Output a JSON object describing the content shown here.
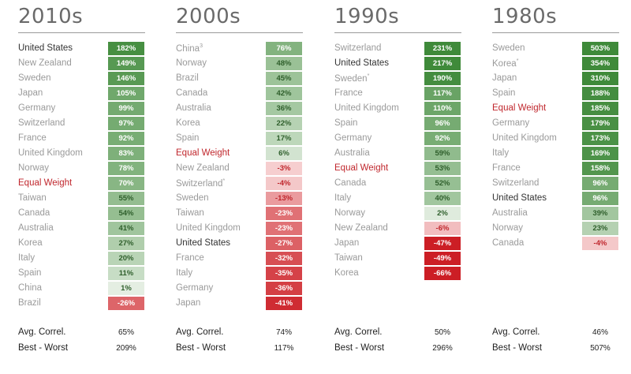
{
  "chart_data": [
    {
      "type": "table",
      "title": "2010s",
      "rows": [
        {
          "label": "United States",
          "value": 182,
          "display": "182%",
          "style": "dark"
        },
        {
          "label": "New Zealand",
          "value": 149,
          "display": "149%"
        },
        {
          "label": "Sweden",
          "value": 146,
          "display": "146%"
        },
        {
          "label": "Japan",
          "value": 105,
          "display": "105%"
        },
        {
          "label": "Germany",
          "value": 99,
          "display": "99%"
        },
        {
          "label": "Switzerland",
          "value": 97,
          "display": "97%"
        },
        {
          "label": "France",
          "value": 92,
          "display": "92%"
        },
        {
          "label": "United Kingdom",
          "value": 83,
          "display": "83%"
        },
        {
          "label": "Norway",
          "value": 78,
          "display": "78%"
        },
        {
          "label": "Equal Weight",
          "value": 70,
          "display": "70%",
          "style": "red"
        },
        {
          "label": "Taiwan",
          "value": 55,
          "display": "55%"
        },
        {
          "label": "Canada",
          "value": 54,
          "display": "54%"
        },
        {
          "label": "Australia",
          "value": 41,
          "display": "41%"
        },
        {
          "label": "Korea",
          "value": 27,
          "display": "27%"
        },
        {
          "label": "Italy",
          "value": 20,
          "display": "20%"
        },
        {
          "label": "Spain",
          "value": 11,
          "display": "11%"
        },
        {
          "label": "China",
          "value": 1,
          "display": "1%"
        },
        {
          "label": "Brazil",
          "value": -26,
          "display": "-26%"
        }
      ],
      "avg_correl_label": "Avg. Correl.",
      "avg_correl": "65%",
      "best_worst_label": "Best - Worst",
      "best_worst": "209%"
    },
    {
      "type": "table",
      "title": "2000s",
      "rows": [
        {
          "label": "China",
          "sup": "3",
          "value": 76,
          "display": "76%"
        },
        {
          "label": "Norway",
          "value": 48,
          "display": "48%"
        },
        {
          "label": "Brazil",
          "value": 45,
          "display": "45%"
        },
        {
          "label": "Canada",
          "value": 42,
          "display": "42%"
        },
        {
          "label": "Australia",
          "value": 36,
          "display": "36%"
        },
        {
          "label": "Korea",
          "value": 22,
          "display": "22%"
        },
        {
          "label": "Spain",
          "value": 17,
          "display": "17%"
        },
        {
          "label": "Equal Weight",
          "value": 6,
          "display": "6%",
          "style": "red"
        },
        {
          "label": "New Zealand",
          "value": -3,
          "display": "-3%"
        },
        {
          "label": "Switzerland",
          "sup": "*",
          "value": -4,
          "display": "-4%"
        },
        {
          "label": "Sweden",
          "value": -13,
          "display": "-13%"
        },
        {
          "label": "Taiwan",
          "value": -23,
          "display": "-23%"
        },
        {
          "label": "United Kingdom",
          "value": -23,
          "display": "-23%"
        },
        {
          "label": "United States",
          "value": -27,
          "display": "-27%",
          "style": "dark"
        },
        {
          "label": "France",
          "value": -32,
          "display": "-32%"
        },
        {
          "label": "Italy",
          "value": -35,
          "display": "-35%"
        },
        {
          "label": "Germany",
          "value": -36,
          "display": "-36%"
        },
        {
          "label": "Japan",
          "value": -41,
          "display": "-41%"
        }
      ],
      "avg_correl_label": "Avg. Correl.",
      "avg_correl": "74%",
      "best_worst_label": "Best - Worst",
      "best_worst": "117%"
    },
    {
      "type": "table",
      "title": "1990s",
      "rows": [
        {
          "label": "Switzerland",
          "value": 231,
          "display": "231%"
        },
        {
          "label": "United States",
          "value": 217,
          "display": "217%",
          "style": "dark"
        },
        {
          "label": "Sweden",
          "sup": "*",
          "value": 190,
          "display": "190%"
        },
        {
          "label": "France",
          "value": 117,
          "display": "117%"
        },
        {
          "label": "United Kingdom",
          "value": 110,
          "display": "110%"
        },
        {
          "label": "Spain",
          "value": 96,
          "display": "96%"
        },
        {
          "label": "Germany",
          "value": 92,
          "display": "92%"
        },
        {
          "label": "Australia",
          "value": 59,
          "display": "59%"
        },
        {
          "label": "Equal Weight",
          "value": 53,
          "display": "53%",
          "style": "red"
        },
        {
          "label": "Canada",
          "value": 52,
          "display": "52%"
        },
        {
          "label": "Italy",
          "value": 40,
          "display": "40%"
        },
        {
          "label": "Norway",
          "value": 2,
          "display": "2%"
        },
        {
          "label": "New Zealand",
          "value": -6,
          "display": "-6%"
        },
        {
          "label": "Japan",
          "value": -47,
          "display": "-47%"
        },
        {
          "label": "Taiwan",
          "value": -49,
          "display": "-49%"
        },
        {
          "label": "Korea",
          "value": -66,
          "display": "-66%"
        }
      ],
      "avg_correl_label": "Avg. Correl.",
      "avg_correl": "50%",
      "best_worst_label": "Best - Worst",
      "best_worst": "296%"
    },
    {
      "type": "table",
      "title": "1980s",
      "rows": [
        {
          "label": "Sweden",
          "value": 503,
          "display": "503%"
        },
        {
          "label": "Korea",
          "sup": "*",
          "value": 354,
          "display": "354%"
        },
        {
          "label": "Japan",
          "value": 310,
          "display": "310%"
        },
        {
          "label": "Spain",
          "value": 188,
          "display": "188%"
        },
        {
          "label": "Equal Weight",
          "value": 185,
          "display": "185%",
          "style": "red"
        },
        {
          "label": "Germany",
          "value": 179,
          "display": "179%"
        },
        {
          "label": "United Kingdom",
          "value": 173,
          "display": "173%"
        },
        {
          "label": "Italy",
          "value": 169,
          "display": "169%"
        },
        {
          "label": "France",
          "value": 158,
          "display": "158%"
        },
        {
          "label": "Switzerland",
          "value": 96,
          "display": "96%"
        },
        {
          "label": "United States",
          "value": 96,
          "display": "96%",
          "style": "dark"
        },
        {
          "label": "Australia",
          "value": 39,
          "display": "39%"
        },
        {
          "label": "Norway",
          "value": 23,
          "display": "23%"
        },
        {
          "label": "Canada",
          "value": -4,
          "display": "-4%"
        }
      ],
      "avg_correl_label": "Avg. Correl.",
      "avg_correl": "46%",
      "best_worst_label": "Best - Worst",
      "best_worst": "507%"
    }
  ],
  "colors": {
    "positive_strong": "#3f8a3a",
    "positive_weak": "#f1f6ef",
    "negative_strong": "#cc1e25",
    "negative_weak": "#fbe5e5",
    "highlight_label": "#c0272d"
  }
}
